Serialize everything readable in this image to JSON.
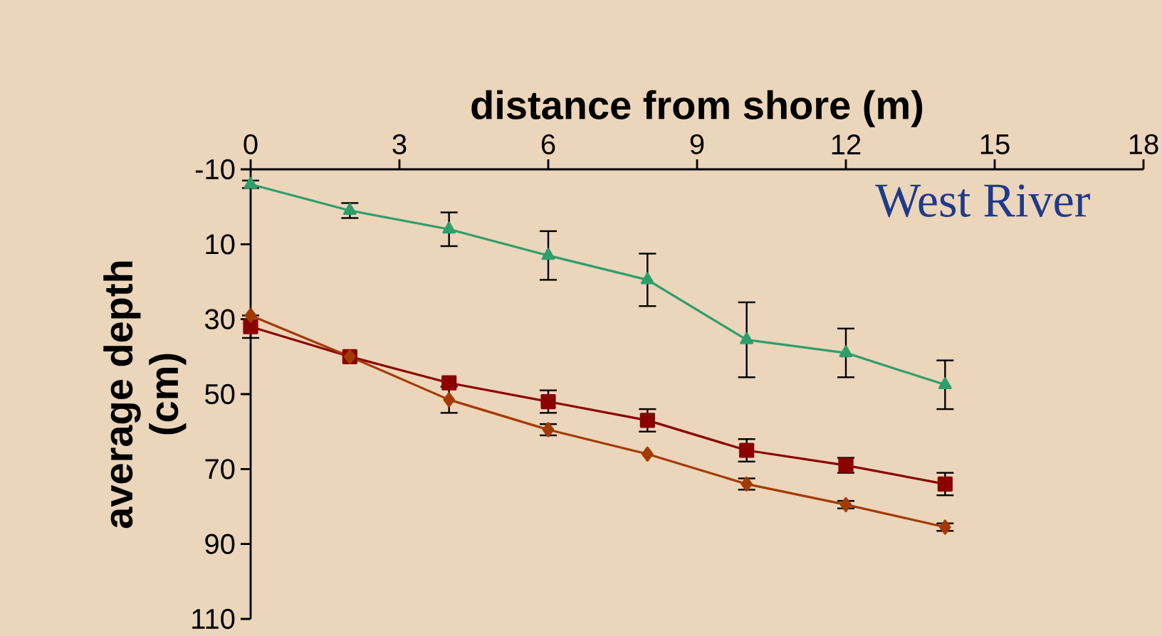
{
  "chart_data": {
    "type": "line",
    "xlabel": "distance from shore (m)",
    "ylabel": "average depth (cm)",
    "xlim": [
      0,
      18
    ],
    "xticks": [
      0,
      3,
      6,
      9,
      12,
      15,
      18
    ],
    "ylim": [
      110,
      -10
    ],
    "yticks": [
      -10,
      10,
      30,
      50,
      70,
      90,
      110
    ],
    "grid": false,
    "annotations": [
      "West River"
    ],
    "series": [
      {
        "color": "#2e9e6b",
        "marker": "triangle",
        "x": [
          0,
          2,
          4,
          6,
          8,
          10,
          12,
          14
        ],
        "values": [
          -6,
          1,
          6,
          13,
          19.5,
          35.5,
          39,
          47.5
        ],
        "errors": [
          1,
          2,
          4.5,
          6.5,
          7,
          10,
          6.5,
          6.5
        ]
      },
      {
        "color": "#8b0000",
        "marker": "square",
        "x": [
          0,
          2,
          4,
          6,
          8,
          10,
          12,
          14
        ],
        "values": [
          32,
          40,
          47,
          52,
          57,
          65,
          69,
          74
        ],
        "errors": [
          3,
          null,
          null,
          3,
          3,
          3,
          2,
          3
        ]
      },
      {
        "color": "#a33a00",
        "marker": "diamond",
        "x": [
          0,
          2,
          4,
          6,
          8,
          10,
          12,
          14
        ],
        "values": [
          29,
          40,
          51.5,
          59.5,
          66,
          74,
          79.5,
          85.5
        ],
        "errors": [
          null,
          null,
          3.5,
          1.5,
          null,
          1.5,
          1,
          1
        ]
      }
    ]
  }
}
